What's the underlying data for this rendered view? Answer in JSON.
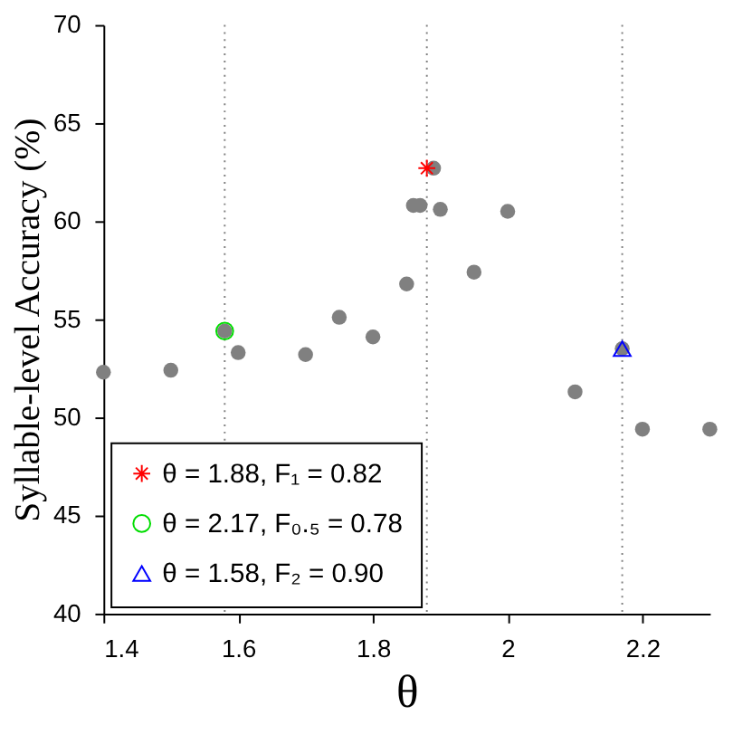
{
  "chart_data": {
    "type": "scatter",
    "xlabel": "θ",
    "ylabel": "Syllable-level Accuracy (%)",
    "xlim": [
      1.4,
      2.3
    ],
    "xticks": [
      1.4,
      1.6,
      1.8,
      2,
      2.2
    ],
    "ylim": [
      40,
      70
    ],
    "yticks": [
      40,
      45,
      50,
      55,
      60,
      65,
      70
    ],
    "grid": false,
    "legend": "bottom left",
    "ref_lines": [
      {
        "axis": "x",
        "value": 1.58,
        "color": "#808080",
        "line_style": "dotted"
      },
      {
        "axis": "x",
        "value": 1.88,
        "color": "#808080",
        "line_style": "dotted"
      },
      {
        "axis": "x",
        "value": 2.17,
        "color": "#808080",
        "line_style": "dotted"
      }
    ],
    "series": [
      {
        "color": "#808080",
        "marker": "circle",
        "x": [
          1.4,
          1.5,
          1.58,
          1.6,
          1.7,
          1.75,
          1.8,
          1.85,
          1.86,
          1.87,
          1.89,
          1.9,
          1.95,
          2.0,
          2.1,
          2.17,
          2.2,
          2.3
        ],
        "values": [
          52.3,
          52.4,
          54.4,
          53.3,
          53.2,
          55.1,
          54.1,
          56.8,
          60.8,
          60.8,
          62.7,
          60.6,
          57.4,
          60.5,
          51.3,
          53.5,
          49.4,
          49.4
        ]
      },
      {
        "name": "θ = 1.88, F₁ = 0.82",
        "color": "#ff0000",
        "marker": "cross",
        "x": [
          1.88
        ],
        "values": [
          62.7
        ]
      },
      {
        "name": "θ = 2.17, F₀.₅ = 0.78",
        "color": "#00dd00",
        "marker": "circle",
        "x": [
          1.58
        ],
        "values": [
          54.4
        ]
      },
      {
        "name": "θ = 1.58, F₂ = 0.90",
        "color": "#0000ff",
        "marker": "triangle",
        "x": [
          2.17
        ],
        "values": [
          53.5
        ]
      }
    ]
  }
}
